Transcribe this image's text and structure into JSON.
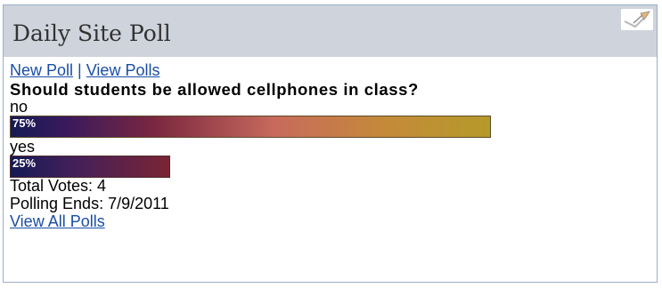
{
  "poll": {
    "title": "Daily Site Poll",
    "links": {
      "new_poll": "New Poll",
      "separator": "|",
      "view_polls": "View Polls"
    },
    "question": "Should students be allowed cellphones in class?",
    "options": [
      {
        "label": "no",
        "percent_label": "75%",
        "percent": 75
      },
      {
        "label": "yes",
        "percent_label": "25%",
        "percent": 25
      }
    ],
    "total_votes": "Total Votes: 4",
    "polling_ends": "Polling Ends: 7/9/2011",
    "view_all_polls": "View All Polls"
  },
  "icons": {
    "edit": "edit-pencil-icon"
  },
  "colors": {
    "header_bg": "#cfd3dc",
    "border": "#9aaec6",
    "link": "#1a4ea6"
  }
}
